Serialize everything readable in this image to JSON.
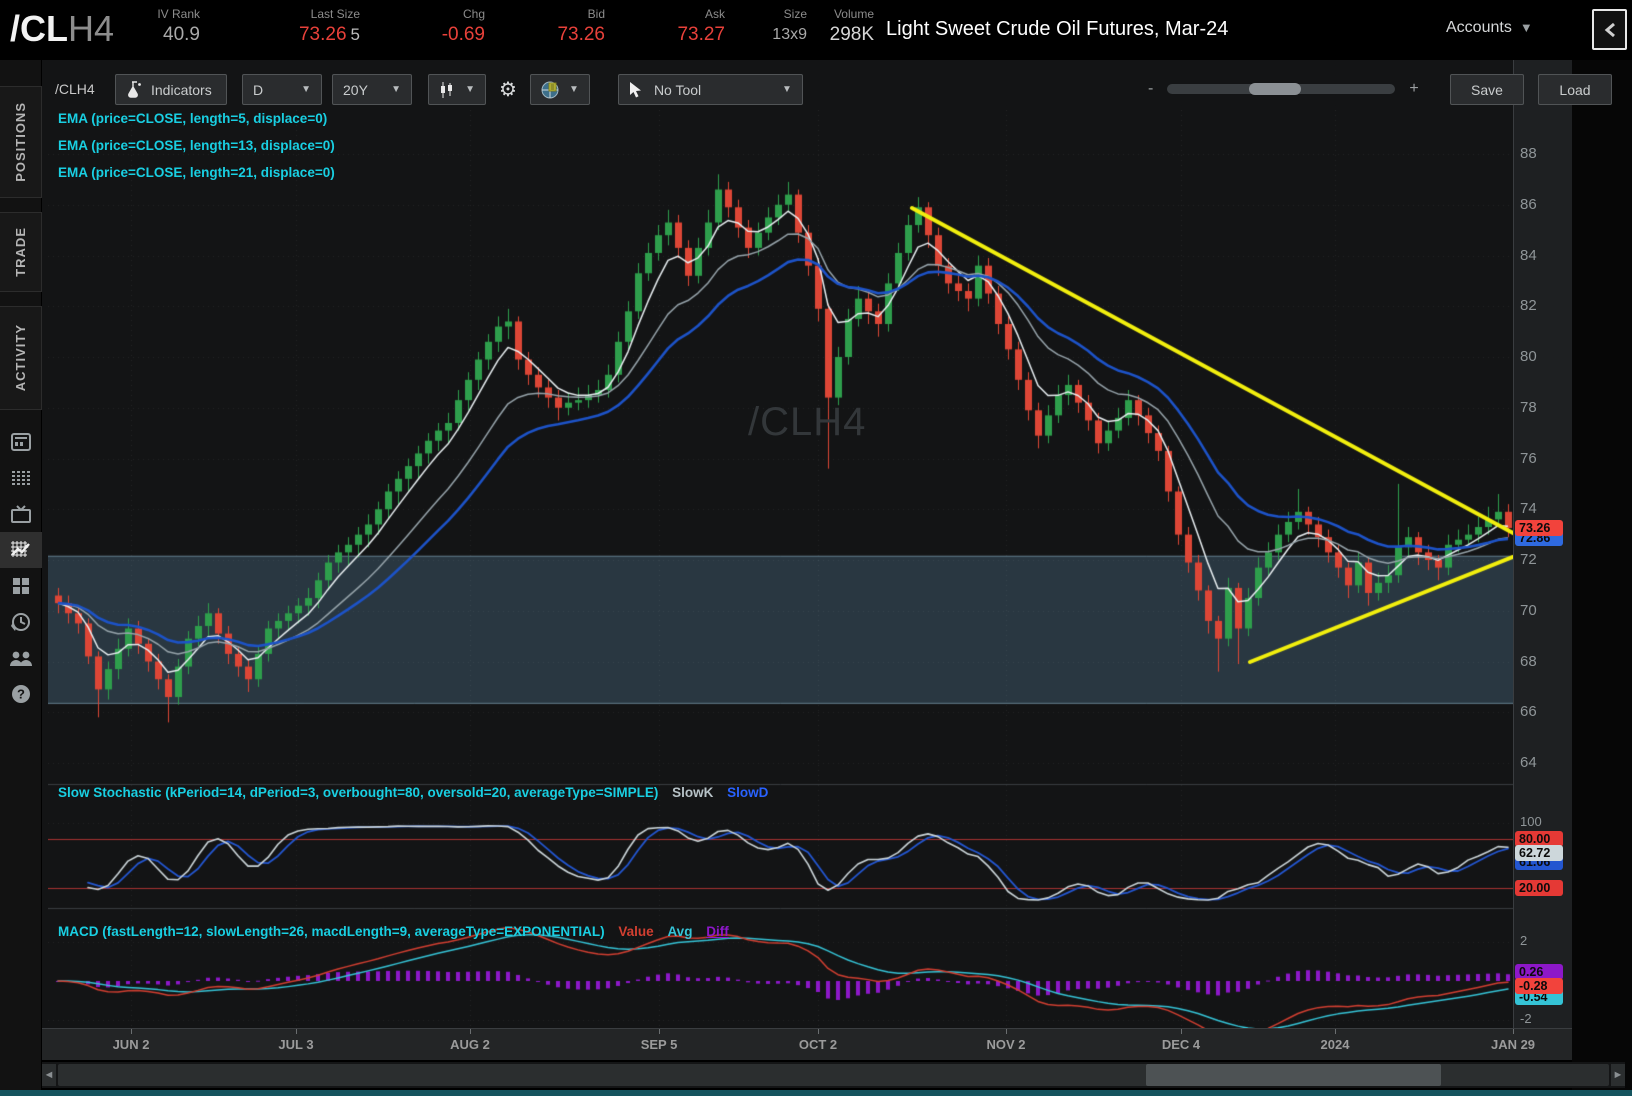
{
  "header": {
    "symbol_main": "/CL",
    "symbol_suffix": "H4",
    "fields": [
      {
        "label": "IV Rank",
        "value": "40.9",
        "color": "gray"
      },
      {
        "label": "Last Size",
        "value": "73.26",
        "extra": "5",
        "color": "red"
      },
      {
        "label": "Chg",
        "value": "-0.69",
        "color": "red"
      },
      {
        "label": "Bid",
        "value": "73.26",
        "color": "red"
      },
      {
        "label": "Ask",
        "value": "73.27",
        "color": "red"
      },
      {
        "label": "Size",
        "value": "13x9",
        "color": "gray"
      },
      {
        "label": "Volume",
        "value": "298K",
        "color": "light"
      }
    ],
    "description": "Light Sweet Crude Oil Futures, Mar-24",
    "accounts_label": "Accounts"
  },
  "sidebar": {
    "tabs": [
      "POSITIONS",
      "TRADE",
      "ACTIVITY"
    ],
    "active_icon": "chart"
  },
  "toolbar": {
    "symbol": "/CLH4",
    "indicators_label": "Indicators",
    "timeframe": "D",
    "range": "20Y",
    "tool_label": "No Tool",
    "zoom_out": "-",
    "zoom_in": "+",
    "save_label": "Save",
    "load_label": "Load"
  },
  "studies": {
    "ema_labels": [
      "EMA (price=CLOSE, length=5, displace=0)",
      "EMA (price=CLOSE, length=13, displace=0)",
      "EMA (price=CLOSE, length=21, displace=0)"
    ],
    "stoch_label": "Slow Stochastic (kPeriod=14, dPeriod=3, overbought=80, oversold=20, averageType=SIMPLE)",
    "stoch_k_label": "SlowK",
    "stoch_d_label": "SlowD",
    "macd_label": "MACD (fastLength=12, slowLength=26, macdLength=9, averageType=EXPONENTIAL)",
    "macd_value_label": "Value",
    "macd_avg_label": "Avg",
    "macd_diff_label": "Diff"
  },
  "watermark": "/CLH4",
  "axes": {
    "price_ticks": [
      88,
      86,
      84,
      82,
      80,
      78,
      76,
      74,
      72,
      70,
      68,
      66,
      64
    ],
    "stoch_ticks": [
      100
    ],
    "macd_ticks": [
      2.0,
      -2
    ],
    "dates": [
      {
        "label": "JUN 2",
        "idx": 7.3
      },
      {
        "label": "JUL 3",
        "idx": 23.8
      },
      {
        "label": "AUG 2",
        "idx": 41.2
      },
      {
        "label": "SEP 5",
        "idx": 60.1
      },
      {
        "label": "OCT 2",
        "idx": 76.0
      },
      {
        "label": "NOV 2",
        "idx": 94.8
      },
      {
        "label": "DEC 4",
        "idx": 112.3
      },
      {
        "label": "2024",
        "idx": 127.7
      },
      {
        "label": "JAN 29",
        "idx": 145.5
      }
    ]
  },
  "bubbles": {
    "price": [
      {
        "text": "72.86",
        "value": 72.86,
        "bg": "#2f6ae0",
        "dy": 0
      },
      {
        "text": "73.26",
        "value": 73.26,
        "bg": "#f2433c",
        "dy": 0
      }
    ],
    "stoch": [
      {
        "text": "61.06",
        "value": 61.06,
        "bg": "#2356d0",
        "dy": 7
      },
      {
        "text": "80.00",
        "value": 80,
        "bg": "#e53935",
        "dy": 0
      },
      {
        "text": "62.72",
        "value": 62.72,
        "bg": "#cdd7db",
        "dy": 0
      },
      {
        "text": "20.00",
        "value": 20,
        "bg": "#e53935",
        "dy": 0
      }
    ],
    "macd": [
      {
        "text": "0.26",
        "value": 0.26,
        "bg": "#8d18c9",
        "dy": -4
      },
      {
        "text": "-0.54",
        "value": -0.54,
        "bg": "#35c3d6",
        "dy": 5
      },
      {
        "text": "-0.28",
        "value": -0.28,
        "bg": "#f2433c",
        "dy": 0
      }
    ]
  },
  "colors": {
    "up": "#2e9e4c",
    "down": "#dd4636",
    "ema5": "#e8eef1",
    "ema13": "#96a3aa",
    "ema21": "#1d53c8",
    "trendline": "#f2ef0e",
    "band_fill": "rgba(94,140,170,0.30)",
    "band_edge": "rgba(160,200,225,0.55)",
    "stoch_k": "#ccd6da",
    "stoch_d": "#2356d0",
    "stoch_level": "#a83232",
    "macd_value": "#d23f31",
    "macd_avg": "#35c3d6",
    "macd_diff": "#8d18c9",
    "grid": "rgba(255,255,255,0.07)",
    "separator": "#3a3d40"
  },
  "chart_data": {
    "type": "candlestick",
    "symbol": "/CLH4",
    "timeframe": "D",
    "ylim": [
      63.5,
      89.5
    ],
    "price_band": {
      "top": 72.15,
      "bottom": 66.35
    },
    "trendlines": [
      {
        "x1_idx": 85.4,
        "price1": 85.87,
        "x2_idx": 145.5,
        "price2": 73.06
      },
      {
        "x1_idx": 119.2,
        "price1": 67.98,
        "x2_idx": 145.5,
        "price2": 72.12
      }
    ],
    "indicators": {
      "ema_lengths": [
        5,
        13,
        21
      ],
      "stochastic": {
        "kPeriod": 14,
        "dPeriod": 3,
        "overbought": 80,
        "oversold": 20
      },
      "macd": {
        "fast": 12,
        "slow": 26,
        "signal": 9
      }
    },
    "candles": [
      [
        70.6,
        70.9,
        69.9,
        70.3
      ],
      [
        70.3,
        70.6,
        69.5,
        69.9
      ],
      [
        69.9,
        70.2,
        69.1,
        69.5
      ],
      [
        69.5,
        69.7,
        67.9,
        68.2
      ],
      [
        68.2,
        68.4,
        65.8,
        66.9
      ],
      [
        66.9,
        68.0,
        66.5,
        67.7
      ],
      [
        67.7,
        68.9,
        67.3,
        68.5
      ],
      [
        68.5,
        69.7,
        68.2,
        69.3
      ],
      [
        69.3,
        69.6,
        68.3,
        68.7
      ],
      [
        68.7,
        68.9,
        67.6,
        68.0
      ],
      [
        68.0,
        68.3,
        66.9,
        67.3
      ],
      [
        67.3,
        67.5,
        65.6,
        66.6
      ],
      [
        66.6,
        68.1,
        66.3,
        67.8
      ],
      [
        67.8,
        69.2,
        67.5,
        68.9
      ],
      [
        68.9,
        69.8,
        68.6,
        69.4
      ],
      [
        69.4,
        70.3,
        69.0,
        69.9
      ],
      [
        69.9,
        70.1,
        68.7,
        69.1
      ],
      [
        69.1,
        69.4,
        67.9,
        68.3
      ],
      [
        68.3,
        68.6,
        67.4,
        67.8
      ],
      [
        67.8,
        68.1,
        66.8,
        67.3
      ],
      [
        67.3,
        68.6,
        67.0,
        68.3
      ],
      [
        68.3,
        69.6,
        68.0,
        69.3
      ],
      [
        69.3,
        69.9,
        68.9,
        69.6
      ],
      [
        69.6,
        70.2,
        69.2,
        69.9
      ],
      [
        69.9,
        70.5,
        69.5,
        70.2
      ],
      [
        70.2,
        70.9,
        69.8,
        70.5
      ],
      [
        70.5,
        71.5,
        70.1,
        71.2
      ],
      [
        71.2,
        72.2,
        70.8,
        71.9
      ],
      [
        71.9,
        72.6,
        71.5,
        72.3
      ],
      [
        72.3,
        72.9,
        71.8,
        72.6
      ],
      [
        72.6,
        73.3,
        72.1,
        73.0
      ],
      [
        73.0,
        73.8,
        72.5,
        73.4
      ],
      [
        73.4,
        74.3,
        73.0,
        74.0
      ],
      [
        74.0,
        75.0,
        73.6,
        74.7
      ],
      [
        74.7,
        75.5,
        74.2,
        75.2
      ],
      [
        75.2,
        76.0,
        74.7,
        75.7
      ],
      [
        75.7,
        76.5,
        75.2,
        76.2
      ],
      [
        76.2,
        77.0,
        75.8,
        76.7
      ],
      [
        76.7,
        77.4,
        76.3,
        77.1
      ],
      [
        77.1,
        77.8,
        76.6,
        77.4
      ],
      [
        77.4,
        78.7,
        77.1,
        78.3
      ],
      [
        78.3,
        79.4,
        77.9,
        79.1
      ],
      [
        79.1,
        80.2,
        78.7,
        79.9
      ],
      [
        79.9,
        80.9,
        79.5,
        80.6
      ],
      [
        80.6,
        81.6,
        80.2,
        81.2
      ],
      [
        81.2,
        81.9,
        80.7,
        81.4
      ],
      [
        81.4,
        81.6,
        79.5,
        79.9
      ],
      [
        79.9,
        80.2,
        78.9,
        79.3
      ],
      [
        79.3,
        79.6,
        78.4,
        78.8
      ],
      [
        78.8,
        79.1,
        78.0,
        78.4
      ],
      [
        78.4,
        78.7,
        77.5,
        78.0
      ],
      [
        78.0,
        78.6,
        77.7,
        78.2
      ],
      [
        78.2,
        78.8,
        77.9,
        78.3
      ],
      [
        78.3,
        78.9,
        78.0,
        78.5
      ],
      [
        78.5,
        79.1,
        78.2,
        78.7
      ],
      [
        78.7,
        79.7,
        78.4,
        79.3
      ],
      [
        79.3,
        81.0,
        79.0,
        80.6
      ],
      [
        80.6,
        82.2,
        80.3,
        81.8
      ],
      [
        81.8,
        83.7,
        81.5,
        83.3
      ],
      [
        83.3,
        84.5,
        83.0,
        84.1
      ],
      [
        84.1,
        85.2,
        83.8,
        84.8
      ],
      [
        84.8,
        85.8,
        84.4,
        85.3
      ],
      [
        85.3,
        85.6,
        83.9,
        84.3
      ],
      [
        84.3,
        84.6,
        82.8,
        83.2
      ],
      [
        83.2,
        84.7,
        82.9,
        84.3
      ],
      [
        84.3,
        85.8,
        84.0,
        85.3
      ],
      [
        85.3,
        87.2,
        85.0,
        86.6
      ],
      [
        86.6,
        86.9,
        85.5,
        85.9
      ],
      [
        85.9,
        86.2,
        84.7,
        85.1
      ],
      [
        85.1,
        85.4,
        83.9,
        84.3
      ],
      [
        84.3,
        85.3,
        84.0,
        84.9
      ],
      [
        84.9,
        85.9,
        84.6,
        85.5
      ],
      [
        85.5,
        86.4,
        85.2,
        86.0
      ],
      [
        86.0,
        86.9,
        85.7,
        86.4
      ],
      [
        86.4,
        86.6,
        84.5,
        84.9
      ],
      [
        84.9,
        85.2,
        83.2,
        83.6
      ],
      [
        83.6,
        83.9,
        81.4,
        81.9
      ],
      [
        81.9,
        82.1,
        75.6,
        78.4
      ],
      [
        78.4,
        80.4,
        78.1,
        80.0
      ],
      [
        80.0,
        81.9,
        79.7,
        81.5
      ],
      [
        81.5,
        82.8,
        81.2,
        82.3
      ],
      [
        82.3,
        82.6,
        81.3,
        81.8
      ],
      [
        81.8,
        82.1,
        80.8,
        81.3
      ],
      [
        81.3,
        83.3,
        81.0,
        82.9
      ],
      [
        82.9,
        84.5,
        82.6,
        84.1
      ],
      [
        84.1,
        85.6,
        83.8,
        85.2
      ],
      [
        85.2,
        86.3,
        84.9,
        85.9
      ],
      [
        85.9,
        86.1,
        84.3,
        84.8
      ],
      [
        84.8,
        85.1,
        83.2,
        83.6
      ],
      [
        83.6,
        83.9,
        82.5,
        82.9
      ],
      [
        82.9,
        83.3,
        82.2,
        82.6
      ],
      [
        82.6,
        82.9,
        81.8,
        82.3
      ],
      [
        82.3,
        84.0,
        82.0,
        83.6
      ],
      [
        83.6,
        83.9,
        82.1,
        82.5
      ],
      [
        82.5,
        82.8,
        80.9,
        81.3
      ],
      [
        81.3,
        81.6,
        79.9,
        80.3
      ],
      [
        80.3,
        80.6,
        78.7,
        79.1
      ],
      [
        79.1,
        79.4,
        77.5,
        77.9
      ],
      [
        77.9,
        78.2,
        76.4,
        76.9
      ],
      [
        76.9,
        78.1,
        76.6,
        77.7
      ],
      [
        77.7,
        78.9,
        77.4,
        78.5
      ],
      [
        78.5,
        79.3,
        78.1,
        78.9
      ],
      [
        78.9,
        79.1,
        77.8,
        78.2
      ],
      [
        78.2,
        78.5,
        77.1,
        77.5
      ],
      [
        77.5,
        77.8,
        76.2,
        76.6
      ],
      [
        76.6,
        77.5,
        76.3,
        77.1
      ],
      [
        77.1,
        78.0,
        76.8,
        77.6
      ],
      [
        77.6,
        78.7,
        77.3,
        78.3
      ],
      [
        78.3,
        78.5,
        77.3,
        77.7
      ],
      [
        77.7,
        78.0,
        76.6,
        77.0
      ],
      [
        77.0,
        77.3,
        75.9,
        76.3
      ],
      [
        76.3,
        76.5,
        74.3,
        74.7
      ],
      [
        74.7,
        74.9,
        72.6,
        73.0
      ],
      [
        73.0,
        73.3,
        71.5,
        71.9
      ],
      [
        71.9,
        72.2,
        70.4,
        70.8
      ],
      [
        70.8,
        71.0,
        69.1,
        69.6
      ],
      [
        69.6,
        69.8,
        67.6,
        68.9
      ],
      [
        68.9,
        71.3,
        68.6,
        70.9
      ],
      [
        70.9,
        71.1,
        67.9,
        69.3
      ],
      [
        69.3,
        70.9,
        69.0,
        70.5
      ],
      [
        70.5,
        72.1,
        70.2,
        71.7
      ],
      [
        71.7,
        72.7,
        71.4,
        72.3
      ],
      [
        72.3,
        73.4,
        72.0,
        73.0
      ],
      [
        73.0,
        73.9,
        72.7,
        73.5
      ],
      [
        73.5,
        74.8,
        73.2,
        73.9
      ],
      [
        73.9,
        74.1,
        73.0,
        73.4
      ],
      [
        73.4,
        73.7,
        72.5,
        72.9
      ],
      [
        72.9,
        73.2,
        71.9,
        72.3
      ],
      [
        72.3,
        72.6,
        71.3,
        71.7
      ],
      [
        71.7,
        71.9,
        70.5,
        71.0
      ],
      [
        71.0,
        72.3,
        70.7,
        71.9
      ],
      [
        71.9,
        72.1,
        70.2,
        70.7
      ],
      [
        70.7,
        71.5,
        70.4,
        71.1
      ],
      [
        71.1,
        71.8,
        70.7,
        71.4
      ],
      [
        71.4,
        75.0,
        71.1,
        72.5
      ],
      [
        72.5,
        73.3,
        72.1,
        72.9
      ],
      [
        72.9,
        73.1,
        71.8,
        72.3
      ],
      [
        72.3,
        72.6,
        71.6,
        72.0
      ],
      [
        72.0,
        72.2,
        71.2,
        71.7
      ],
      [
        71.7,
        73.0,
        71.4,
        72.6
      ],
      [
        72.6,
        73.2,
        72.3,
        72.8
      ],
      [
        72.8,
        73.4,
        72.5,
        73.0
      ],
      [
        73.0,
        73.7,
        72.7,
        73.3
      ],
      [
        73.3,
        74.1,
        73.0,
        73.6
      ],
      [
        73.6,
        74.6,
        73.3,
        73.9
      ],
      [
        73.9,
        74.2,
        72.9,
        73.26
      ]
    ]
  }
}
